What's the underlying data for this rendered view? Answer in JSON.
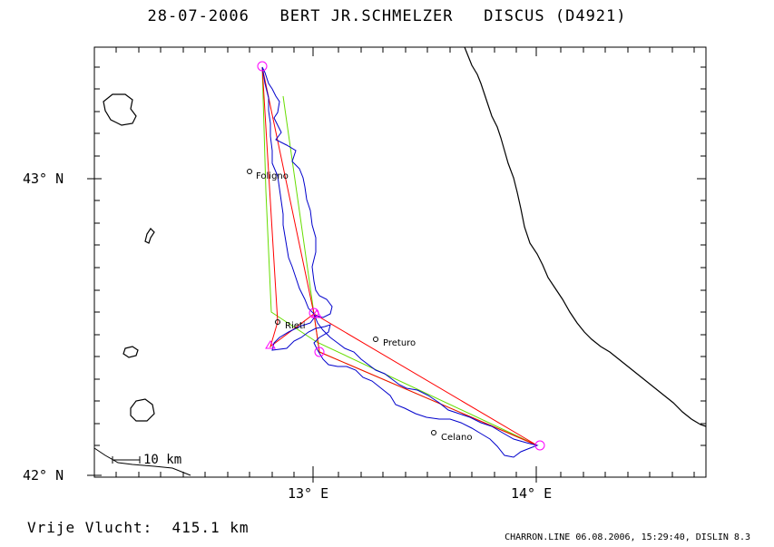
{
  "title": "28-07-2006   BERT JR.SCHMELZER   DISCUS (D4921)",
  "axes": {
    "y_labels": [
      "43° N",
      "42° N"
    ],
    "x_labels": [
      "13° E",
      "14° E"
    ]
  },
  "scale_bar": {
    "label": "10 km"
  },
  "places": [
    {
      "name": "Foligno"
    },
    {
      "name": "Rieti"
    },
    {
      "name": "Preturo"
    },
    {
      "name": "Celano"
    }
  ],
  "distance_text": "Vrije Vlucht:  415.1 km",
  "footer_text": "CHARRON.LINE 06.08.2006, 15:29:40, DISLIN 8.3",
  "colors": {
    "track": "#0000cc",
    "task": "#ff0000",
    "alt": "#66dd00",
    "turnpoint": "#ff00ff",
    "coast": "#000000"
  }
}
